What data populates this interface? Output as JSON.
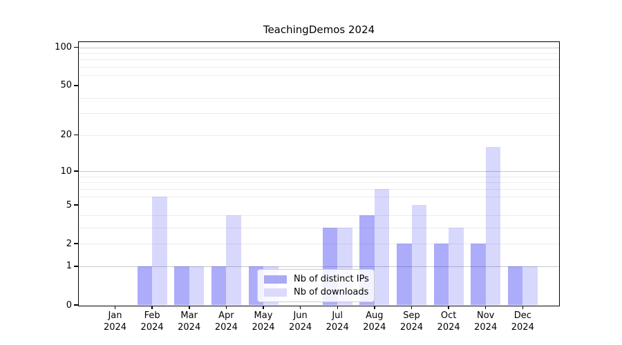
{
  "chart_data": {
    "type": "bar",
    "title": "TeachingDemos 2024",
    "x_months": [
      "Jan",
      "Feb",
      "Mar",
      "Apr",
      "May",
      "Jun",
      "Jul",
      "Aug",
      "Sep",
      "Oct",
      "Nov",
      "Dec"
    ],
    "x_year": "2024",
    "series": [
      {
        "name": "Nb of distinct IPs",
        "values": [
          0,
          1,
          1,
          1,
          1,
          0,
          3,
          4,
          2,
          2,
          2,
          1
        ]
      },
      {
        "name": "Nb of downloads",
        "values": [
          0,
          6,
          1,
          4,
          1,
          0,
          3,
          7,
          5,
          3,
          16,
          1
        ]
      }
    ],
    "y_scale": "log10(1+x)",
    "y_ticks": [
      0,
      1,
      2,
      5,
      10,
      20,
      50,
      100
    ],
    "y_minor_gridlines": [
      2,
      3,
      4,
      6,
      7,
      8,
      9,
      20,
      30,
      40,
      60,
      70,
      80,
      90
    ],
    "y_major_gridlines": [
      1,
      10,
      100
    ],
    "ylim": [
      0,
      115
    ],
    "grid": "on",
    "legend_position": "lower-center-inside",
    "colors": {
      "ips_bar": "rgba(13,13,242,0.34)",
      "downloads_bar": "rgba(13,13,242,0.16)",
      "ips_swatch": "#a9a9f6",
      "downloads_swatch": "#dbdafb",
      "grid_major": "#c9c9c9",
      "grid_minor": "#ececec",
      "axis": "#000000"
    }
  }
}
